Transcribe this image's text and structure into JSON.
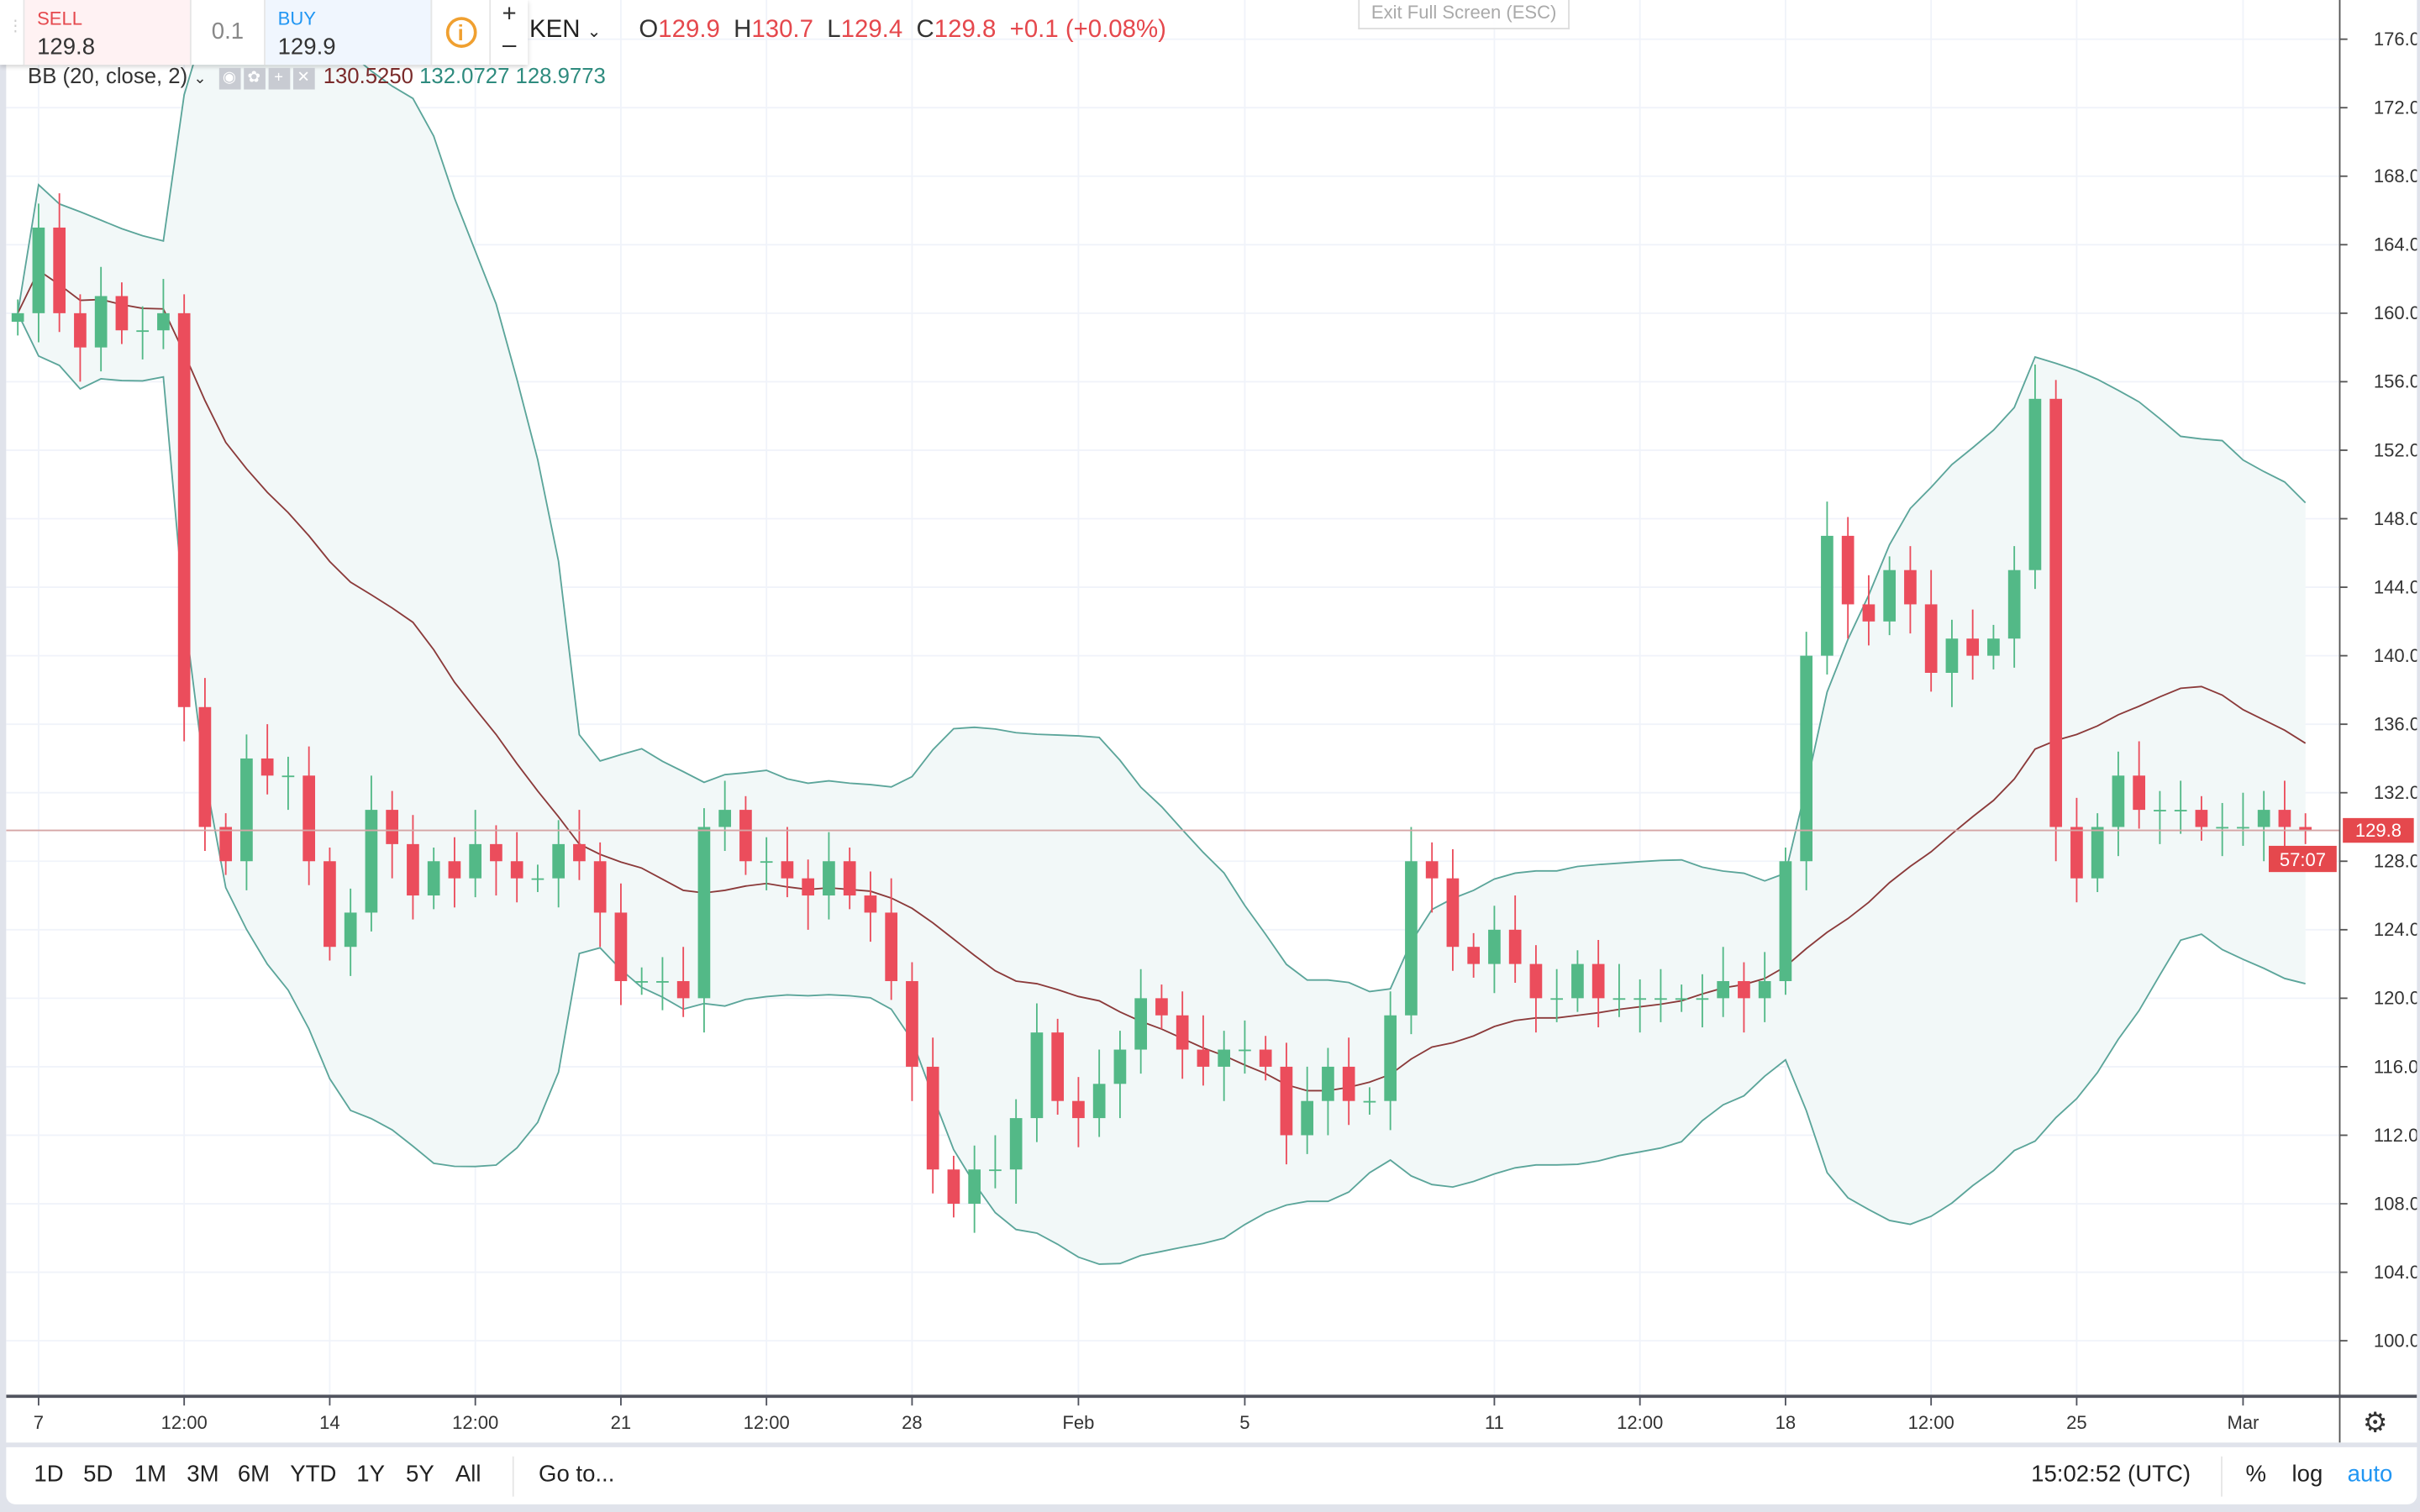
{
  "trade_panel": {
    "sell_label": "SELL",
    "sell_price": "129.8",
    "spread": "0.1",
    "buy_label": "BUY",
    "buy_price": "129.9",
    "info_icon": "info-icon",
    "plus": "+",
    "minus": "–"
  },
  "header": {
    "symbol": "KEN",
    "o_label": "O",
    "o": "129.9",
    "h_label": "H",
    "h": "130.7",
    "l_label": "L",
    "l": "129.4",
    "c_label": "C",
    "c": "129.8",
    "change": "+0.1 (+0.08%)",
    "exit_fullscreen": "Exit Full Screen (ESC)"
  },
  "indicator": {
    "name": "BB (20, close, 2)",
    "basis": "130.5250",
    "upper": "132.0727",
    "lower": "128.9773"
  },
  "price_axis": {
    "ticks": [
      "100.0",
      "104.0",
      "108.0",
      "112.0",
      "116.0",
      "120.0",
      "124.0",
      "128.0",
      "132.0",
      "136.0",
      "140.0",
      "144.0",
      "148.0",
      "152.0",
      "156.0",
      "160.0",
      "164.0",
      "168.0",
      "172.0",
      "176.0"
    ],
    "last_price": "129.8",
    "countdown": "57:07"
  },
  "time_axis": {
    "ticks": [
      {
        "label": "7",
        "day": 7
      },
      {
        "label": "12:00",
        "day": 10.5
      },
      {
        "label": "14",
        "day": 14
      },
      {
        "label": "12:00",
        "day": 17.5
      },
      {
        "label": "21",
        "day": 21
      },
      {
        "label": "12:00",
        "day": 24.5
      },
      {
        "label": "28",
        "day": 28
      },
      {
        "label": "Feb",
        "day": 32
      },
      {
        "label": "5",
        "day": 36
      },
      {
        "label": "11",
        "day": 42
      },
      {
        "label": "12:00",
        "day": 45.5
      },
      {
        "label": "18",
        "day": 49
      },
      {
        "label": "12:00",
        "day": 52.5
      },
      {
        "label": "25",
        "day": 56
      },
      {
        "label": "Mar",
        "day": 60
      }
    ]
  },
  "toolbar": {
    "ranges": [
      "1D",
      "5D",
      "1M",
      "3M",
      "6M",
      "YTD",
      "1Y",
      "5Y",
      "All"
    ],
    "goto": "Go to...",
    "clock": "15:02:52 (UTC)",
    "percent": "%",
    "log": "log",
    "auto": "auto"
  },
  "colors": {
    "up": "#53b987",
    "down": "#eb4d5c",
    "band": "#5ba59a",
    "band_fill": "#f2f8f8",
    "basis": "#8b3a3a",
    "grid": "#f0f3fa",
    "auto": "#2196f3",
    "sell": "#e5484d",
    "buy": "#2196f3"
  },
  "chart_data": {
    "type": "candlestick",
    "indicator": "Bollinger Bands (20, close, 2)",
    "ylim": [
      98,
      178
    ],
    "grid": true,
    "interval": "12h",
    "x": [
      "Jan 6 12:00",
      "Jan 7",
      "Jan 7 12:00",
      "Jan 8",
      "Jan 8 12:00",
      "Jan 9",
      "Jan 9 12:00",
      "Jan 10",
      "Jan 10 12:00",
      "Jan 11",
      "Jan 11 12:00",
      "Jan 12",
      "Jan 12 12:00",
      "Jan 13",
      "Jan 13 12:00",
      "Jan 14",
      "Jan 14 12:00",
      "Jan 15",
      "Jan 15 12:00",
      "Jan 16",
      "Jan 16 12:00",
      "Jan 17",
      "Jan 17 12:00",
      "Jan 18",
      "Jan 18 12:00",
      "Jan 19",
      "Jan 19 12:00",
      "Jan 20",
      "Jan 20 12:00",
      "Jan 21",
      "Jan 21 12:00",
      "Jan 22",
      "Jan 22 12:00",
      "Jan 23",
      "Jan 23 12:00",
      "Jan 24",
      "Jan 24 12:00",
      "Jan 25",
      "Jan 25 12:00",
      "Jan 26",
      "Jan 26 12:00",
      "Jan 27",
      "Jan 27 12:00",
      "Jan 28",
      "Jan 28 12:00",
      "Jan 29",
      "Jan 29 12:00",
      "Jan 30",
      "Jan 30 12:00",
      "Jan 31",
      "Jan 31 12:00",
      "Feb 1",
      "Feb 1 12:00",
      "Feb 2",
      "Feb 2 12:00",
      "Feb 3",
      "Feb 3 12:00",
      "Feb 4",
      "Feb 4 12:00",
      "Feb 5",
      "Feb 5 12:00",
      "Feb 6",
      "Feb 6 12:00",
      "Feb 7",
      "Feb 7 12:00",
      "Feb 8",
      "Feb 8 12:00",
      "Feb 9",
      "Feb 9 12:00",
      "Feb 10",
      "Feb 10 12:00",
      "Feb 11",
      "Feb 11 12:00",
      "Feb 12",
      "Feb 12 12:00",
      "Feb 13",
      "Feb 13 12:00",
      "Feb 14",
      "Feb 14 12:00",
      "Feb 15",
      "Feb 15 12:00",
      "Feb 16",
      "Feb 16 12:00",
      "Feb 17",
      "Feb 17 12:00",
      "Feb 18",
      "Feb 18 12:00",
      "Feb 19",
      "Feb 19 12:00",
      "Feb 20",
      "Feb 20 12:00",
      "Feb 21",
      "Feb 21 12:00",
      "Feb 22",
      "Feb 22 12:00",
      "Feb 23",
      "Feb 23 12:00",
      "Feb 24",
      "Feb 24 12:00",
      "Feb 25",
      "Feb 25 12:00",
      "Feb 26",
      "Feb 26 12:00",
      "Feb 27",
      "Feb 27 12:00",
      "Feb 28",
      "Feb 28 12:00",
      "Mar 1",
      "Mar 1 12:00",
      "Mar 2",
      "Mar 2 12:00"
    ],
    "close": [
      160,
      165,
      160,
      158,
      161,
      159,
      159,
      160,
      137,
      130,
      128,
      134,
      133,
      133,
      128,
      123,
      125,
      131,
      129,
      126,
      128,
      127,
      129,
      128,
      127,
      127,
      129,
      128,
      125,
      121,
      121,
      121,
      120,
      130,
      131,
      128,
      128,
      127,
      126,
      128,
      126,
      125,
      121,
      116,
      110,
      108,
      110,
      110,
      113,
      118,
      114,
      113,
      115,
      117,
      120,
      119,
      117,
      116,
      117,
      117,
      116,
      112,
      114,
      116,
      114,
      114,
      119,
      128,
      127,
      123,
      122,
      124,
      122,
      120,
      120,
      122,
      120,
      120,
      120,
      120,
      120,
      120,
      121,
      120,
      121,
      128,
      140,
      147,
      143,
      142,
      145,
      143,
      139,
      141,
      140,
      141,
      145,
      155,
      130,
      127,
      130,
      133,
      131,
      131,
      131,
      130,
      130,
      130,
      131,
      130,
      129.8
    ]
  }
}
